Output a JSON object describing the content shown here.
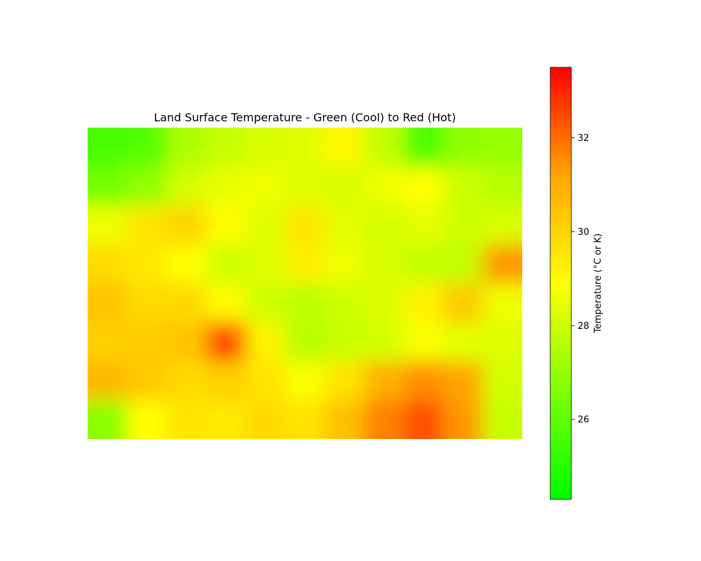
{
  "chart_data": {
    "type": "heatmap",
    "title": "Land Surface Temperature - Green (Cool) to Red (Hot)",
    "colorbar": {
      "label": "Temperature (°C or K)",
      "range": [
        24.3,
        33.5
      ],
      "ticks": [
        26,
        28,
        30,
        32
      ],
      "tick_labels": [
        "26",
        "28",
        "30",
        "32"
      ],
      "colors": [
        "#00ff00",
        "#ffff00",
        "#ffa500",
        "#ff0000"
      ]
    },
    "axes_visible": false,
    "grid": false,
    "rows": 8,
    "cols": 11,
    "values": [
      [
        25.6,
        25.8,
        27.4,
        27.9,
        28.2,
        28.4,
        29.1,
        27.8,
        25.7,
        26.9,
        27.0
      ],
      [
        26.4,
        26.9,
        28.1,
        28.5,
        28.6,
        28.3,
        28.2,
        28.6,
        28.9,
        28.0,
        27.6
      ],
      [
        28.6,
        29.6,
        30.0,
        29.0,
        28.3,
        29.6,
        28.4,
        28.1,
        28.4,
        28.0,
        28.2
      ],
      [
        29.8,
        29.5,
        28.9,
        28.0,
        28.3,
        29.3,
        28.6,
        28.2,
        27.8,
        27.8,
        31.4
      ],
      [
        30.4,
        29.8,
        29.9,
        29.0,
        28.0,
        27.7,
        28.0,
        28.3,
        29.2,
        30.3,
        28.6
      ],
      [
        30.1,
        30.2,
        30.4,
        32.5,
        29.2,
        27.6,
        27.9,
        28.1,
        28.8,
        28.4,
        28.3
      ],
      [
        30.7,
        30.3,
        29.8,
        30.1,
        29.6,
        28.8,
        29.6,
        30.9,
        31.5,
        31.2,
        28.1
      ],
      [
        26.8,
        28.9,
        29.6,
        29.4,
        29.9,
        29.6,
        30.5,
        31.7,
        32.4,
        31.4,
        27.9
      ]
    ]
  }
}
